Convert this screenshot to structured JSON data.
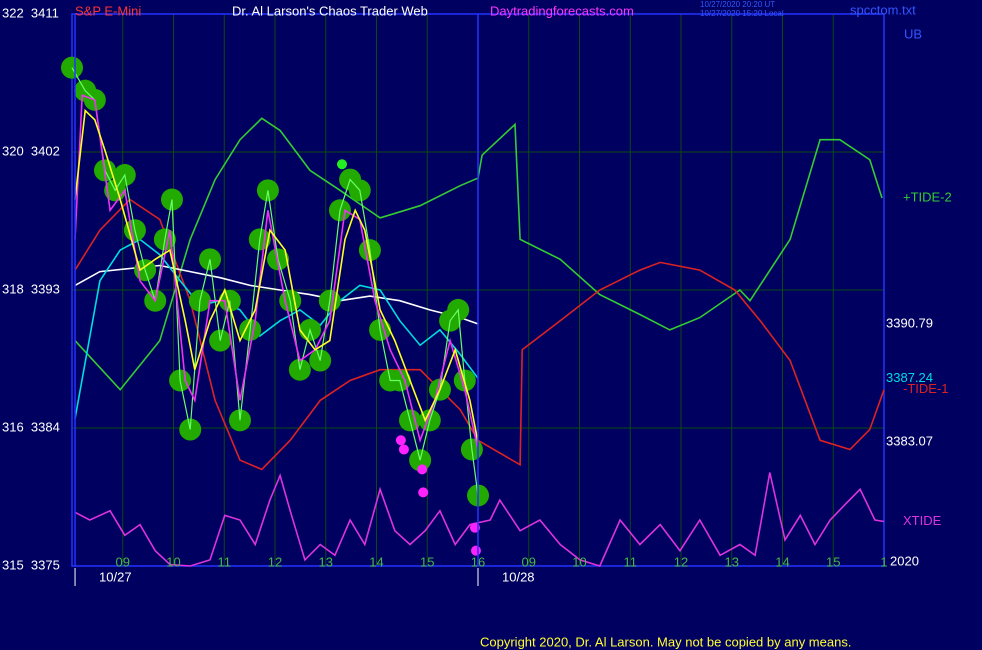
{
  "chart_data": {
    "type": "line",
    "symbol": "S&P E-Mini",
    "title": "Dr. Al Larson's Chaos Trader Web",
    "site": "Daytradingforecasts.com",
    "timestamps": [
      "10/27/2020 20:20 UT",
      "10/27/2020 15:20 Local"
    ],
    "file": "spcctom.txt",
    "annotations": [
      "UB",
      "2020"
    ],
    "copyright": "Copyright 2020, Dr. Al Larson. May not be copied by any means.",
    "xlim": [
      0,
      16
    ],
    "ylim": [
      3375,
      3411
    ],
    "yticks": [
      {
        "value": 3411,
        "label": "322  3411"
      },
      {
        "value": 3402,
        "label": "320  3402"
      },
      {
        "value": 3393,
        "label": "318  3393"
      },
      {
        "value": 3384,
        "label": "316  3384"
      },
      {
        "value": 3375,
        "label": "315  3375"
      }
    ],
    "xticks": [
      {
        "value": 1,
        "label": "09"
      },
      {
        "value": 2,
        "label": "10"
      },
      {
        "value": 3,
        "label": "11"
      },
      {
        "value": 4,
        "label": "12"
      },
      {
        "value": 5,
        "label": "13"
      },
      {
        "value": 6,
        "label": "14"
      },
      {
        "value": 7,
        "label": "15"
      },
      {
        "value": 8,
        "label": "16"
      },
      {
        "value": 9,
        "label": "09"
      },
      {
        "value": 10,
        "label": "10"
      },
      {
        "value": 11,
        "label": "11"
      },
      {
        "value": 12,
        "label": "12"
      },
      {
        "value": 13,
        "label": "13"
      },
      {
        "value": 14,
        "label": "14"
      },
      {
        "value": 15,
        "label": "15"
      },
      {
        "value": 16,
        "label": "1"
      }
    ],
    "date_ticks": [
      {
        "value": 0.06,
        "label": "10/27"
      },
      {
        "value": 8.0,
        "label": "10/28"
      }
    ],
    "grid": true,
    "series": [
      {
        "name": "+TIDE-2",
        "color": "#33cc33",
        "style": "line",
        "x": [
          0.06,
          0.95,
          1.73,
          2.33,
          2.82,
          3.31,
          3.74,
          4.1,
          4.69,
          5.28,
          6.07,
          6.86,
          7.65,
          8.0,
          8.08,
          8.73,
          8.83,
          9.62,
          10.4,
          11.19,
          11.78,
          12.37,
          13.16,
          13.36,
          14.15,
          14.74,
          15.13,
          15.72,
          15.96
        ],
        "values": [
          3389.7,
          3386.5,
          3389.7,
          3396.3,
          3400.2,
          3402.8,
          3404.2,
          3403.4,
          3400.8,
          3399.5,
          3397.7,
          3398.5,
          3399.8,
          3400.3,
          3401.8,
          3403.8,
          3396.3,
          3395.0,
          3392.7,
          3391.4,
          3390.4,
          3391.2,
          3393.0,
          3392.3,
          3396.3,
          3402.8,
          3402.8,
          3401.5,
          3399.0
        ]
      },
      {
        "name": "-TIDE-1",
        "color": "#dd2222",
        "style": "line",
        "x": [
          0.06,
          0.55,
          1.14,
          1.73,
          2.33,
          2.82,
          3.31,
          3.74,
          4.3,
          4.89,
          5.48,
          6.07,
          6.86,
          7.65,
          8.0,
          8.83,
          8.87,
          9.62,
          10.4,
          11.19,
          11.59,
          12.37,
          13.06,
          13.56,
          14.15,
          14.74,
          15.33,
          15.72,
          16.0
        ],
        "values": [
          3394.3,
          3396.9,
          3398.9,
          3397.6,
          3392.3,
          3385.8,
          3381.9,
          3381.3,
          3383.2,
          3385.8,
          3387.1,
          3387.8,
          3387.8,
          3385.2,
          3383.2,
          3381.6,
          3389.1,
          3391.0,
          3393.0,
          3394.3,
          3394.8,
          3394.3,
          3393.0,
          3391.0,
          3388.4,
          3383.2,
          3382.6,
          3383.9,
          3386.5
        ]
      },
      {
        "name": "XTIDE",
        "color": "#dd33dd",
        "style": "line",
        "x": [
          0.06,
          0.35,
          0.75,
          1.04,
          1.34,
          1.64,
          1.93,
          2.33,
          2.72,
          3.01,
          3.31,
          3.61,
          3.9,
          4.1,
          4.3,
          4.59,
          4.89,
          5.18,
          5.48,
          5.77,
          6.07,
          6.36,
          6.66,
          6.96,
          7.25,
          7.55,
          7.84,
          8.24,
          8.43,
          8.83,
          9.22,
          9.62,
          10.01,
          10.4,
          10.8,
          11.19,
          11.59,
          11.98,
          12.37,
          12.77,
          13.16,
          13.46,
          13.75,
          14.05,
          14.35,
          14.64,
          14.94,
          15.23,
          15.53,
          15.82,
          16.0
        ],
        "values": [
          3378.5,
          3378.0,
          3378.6,
          3377.0,
          3377.7,
          3376.0,
          3375.1,
          3375.0,
          3375.4,
          3378.3,
          3378.0,
          3376.4,
          3379.3,
          3380.9,
          3378.6,
          3375.4,
          3376.4,
          3375.7,
          3378.0,
          3376.4,
          3380.0,
          3377.3,
          3376.4,
          3377.3,
          3378.6,
          3376.4,
          3377.7,
          3378.0,
          3379.3,
          3377.3,
          3378.0,
          3376.4,
          3375.4,
          3375.0,
          3378.0,
          3376.4,
          3377.7,
          3376.0,
          3378.0,
          3375.7,
          3376.4,
          3375.7,
          3381.1,
          3376.7,
          3378.3,
          3376.4,
          3378.0,
          3379.0,
          3380.0,
          3378.0,
          3377.9
        ]
      },
      {
        "color": "#ffffff",
        "style": "line",
        "last_label": "3390.79",
        "x": [
          0.06,
          0.55,
          1.14,
          1.73,
          2.33,
          2.92,
          3.51,
          4.1,
          4.69,
          5.28,
          5.87,
          6.46,
          7.05,
          7.65,
          8.0
        ],
        "values": [
          3393.3,
          3394.2,
          3394.4,
          3394.6,
          3394.2,
          3393.8,
          3393.3,
          3393.0,
          3392.7,
          3392.3,
          3392.6,
          3392.3,
          3391.7,
          3391.2,
          3390.79
        ]
      },
      {
        "color": "#00dddd",
        "style": "line",
        "last_label": "3387.24",
        "x": [
          0.06,
          0.55,
          0.95,
          1.34,
          1.73,
          2.13,
          2.52,
          2.92,
          3.31,
          3.7,
          4.1,
          4.49,
          4.89,
          5.28,
          5.67,
          6.07,
          6.46,
          6.86,
          7.25,
          7.65,
          8.0
        ],
        "values": [
          3384.6,
          3393.6,
          3395.6,
          3396.3,
          3395.3,
          3393.6,
          3392.0,
          3392.3,
          3391.7,
          3390.0,
          3391.0,
          3391.7,
          3390.7,
          3392.3,
          3393.3,
          3393.0,
          3391.0,
          3389.4,
          3390.4,
          3388.8,
          3387.24
        ]
      },
      {
        "color": "#22aa00",
        "style": "circles",
        "x": [
          0,
          0.26,
          0.45,
          0.65,
          0.85,
          1.04,
          1.24,
          1.44,
          1.64,
          1.83,
          1.97,
          2.13,
          2.33,
          2.52,
          2.72,
          2.92,
          3.11,
          3.31,
          3.51,
          3.7,
          3.86,
          4.06,
          4.3,
          4.49,
          4.69,
          4.89,
          5.08,
          5.28,
          5.48,
          5.67,
          5.87,
          6.07,
          6.27,
          6.46,
          6.66,
          6.86,
          7.05,
          7.25,
          7.45,
          7.61,
          7.74,
          7.88,
          8.0
        ],
        "values": [
          3407.5,
          3406.0,
          3405.4,
          3400.8,
          3399.5,
          3400.5,
          3396.9,
          3394.3,
          3392.3,
          3396.3,
          3398.9,
          3387.1,
          3383.9,
          3392.3,
          3395.0,
          3389.7,
          3392.3,
          3384.5,
          3390.4,
          3396.3,
          3399.5,
          3395.0,
          3392.3,
          3387.8,
          3390.4,
          3388.4,
          3392.3,
          3398.2,
          3400.2,
          3399.5,
          3395.6,
          3390.4,
          3387.1,
          3387.1,
          3384.5,
          3381.9,
          3384.5,
          3386.5,
          3391.0,
          3391.7,
          3387.1,
          3382.6,
          3379.6
        ]
      },
      {
        "color": "#ee33ee",
        "style": "line",
        "x": [
          0.06,
          0.2,
          0.45,
          0.75,
          1.04,
          1.34,
          1.64,
          1.93,
          2.23,
          2.42,
          2.72,
          3.01,
          3.31,
          3.61,
          3.86,
          4.2,
          4.49,
          4.79,
          5.08,
          5.38,
          5.67,
          5.97,
          6.27,
          6.56,
          6.86,
          7.15,
          7.45,
          7.74,
          8.0
        ],
        "values": [
          3396.3,
          3405.7,
          3405.4,
          3398.2,
          3399.5,
          3393.6,
          3392.3,
          3396.9,
          3387.1,
          3385.8,
          3392.3,
          3392.3,
          3385.8,
          3391.0,
          3398.2,
          3392.3,
          3388.4,
          3389.1,
          3391.0,
          3398.2,
          3397.6,
          3392.3,
          3389.1,
          3387.1,
          3383.2,
          3385.8,
          3389.7,
          3386.5,
          3382.6
        ]
      },
      {
        "color": "#ffff22",
        "style": "line",
        "last_label": "3383.07",
        "x": [
          0.06,
          0.26,
          0.45,
          0.65,
          0.95,
          1.34,
          1.64,
          1.93,
          2.23,
          2.42,
          2.72,
          3.01,
          3.31,
          3.61,
          3.9,
          4.2,
          4.49,
          4.79,
          5.08,
          5.38,
          5.58,
          5.77,
          6.07,
          6.36,
          6.66,
          6.96,
          7.25,
          7.55,
          7.84,
          8.0
        ],
        "values": [
          3398.9,
          3404.7,
          3404.1,
          3402.1,
          3398.9,
          3394.3,
          3395.0,
          3395.6,
          3391.0,
          3387.8,
          3391.0,
          3393.0,
          3389.7,
          3391.7,
          3396.9,
          3395.6,
          3390.4,
          3389.1,
          3389.7,
          3396.3,
          3398.2,
          3396.9,
          3391.7,
          3389.7,
          3387.1,
          3384.5,
          3386.5,
          3389.1,
          3385.8,
          3383.07
        ]
      },
      {
        "color": "#22ee22",
        "style": "dots",
        "x": [
          5.32
        ],
        "values": [
          3401.2
        ]
      },
      {
        "color": "#ff22ff",
        "style": "dots",
        "x": [
          6.48,
          6.54,
          6.9,
          6.92,
          7.94,
          7.96
        ],
        "values": [
          3383.2,
          3382.6,
          3381.3,
          3379.8,
          3377.5,
          3376.0
        ]
      }
    ]
  }
}
